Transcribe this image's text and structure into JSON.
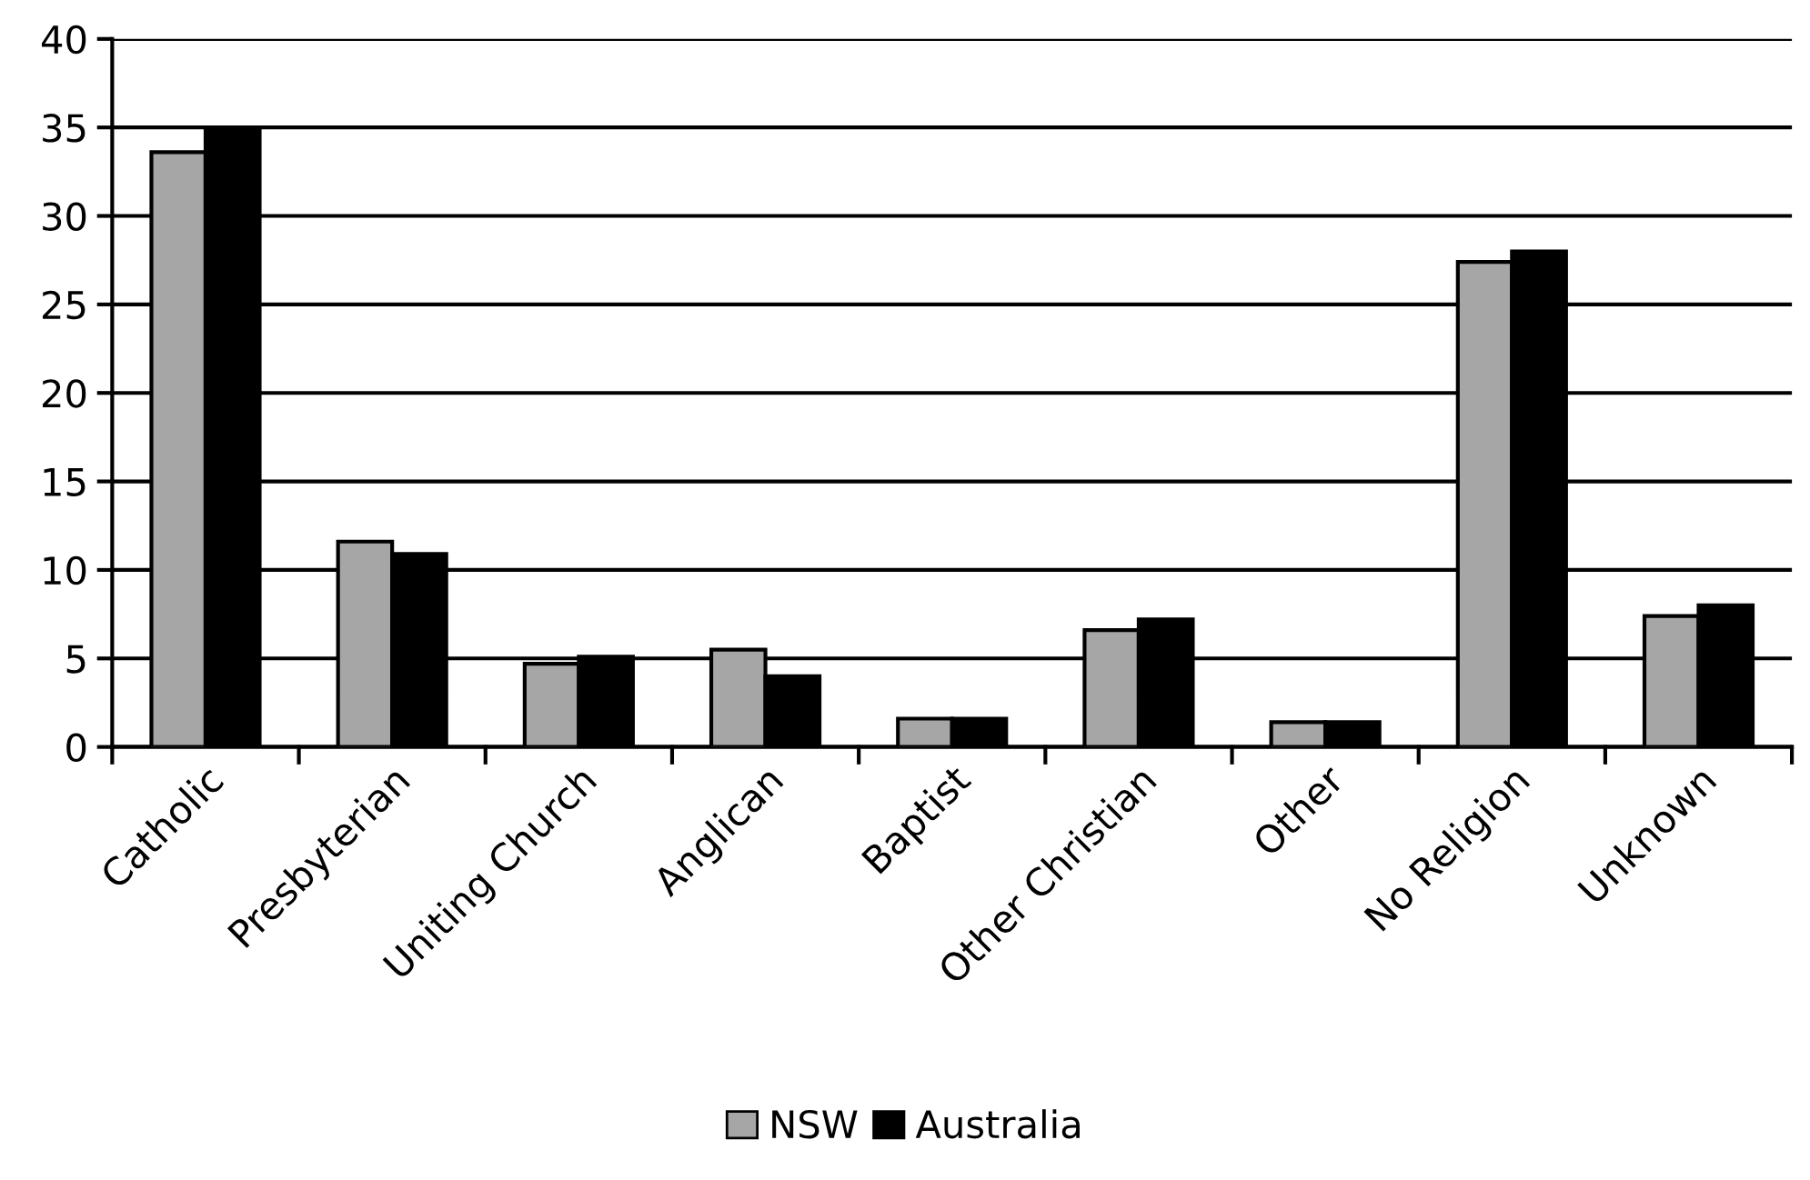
{
  "chart_data": {
    "type": "bar",
    "categories": [
      "Catholic",
      "Presbyterian",
      "Uniting Church",
      "Anglican",
      "Baptist",
      "Other Christian",
      "Other",
      "No Religion",
      "Unknown"
    ],
    "series": [
      {
        "name": "NSW",
        "color": "#a6a6a6",
        "values": [
          33.6,
          11.6,
          4.7,
          5.5,
          1.6,
          6.6,
          1.4,
          27.4,
          7.4
        ]
      },
      {
        "name": "Australia",
        "color": "#000000",
        "values": [
          35.0,
          10.9,
          5.1,
          4.0,
          1.6,
          7.2,
          1.4,
          28.0,
          8.0
        ]
      }
    ],
    "ylim": [
      0,
      40
    ],
    "yticks": [
      0,
      5,
      10,
      15,
      20,
      25,
      30,
      35,
      40
    ],
    "grid": "y",
    "legend": "bottom"
  }
}
